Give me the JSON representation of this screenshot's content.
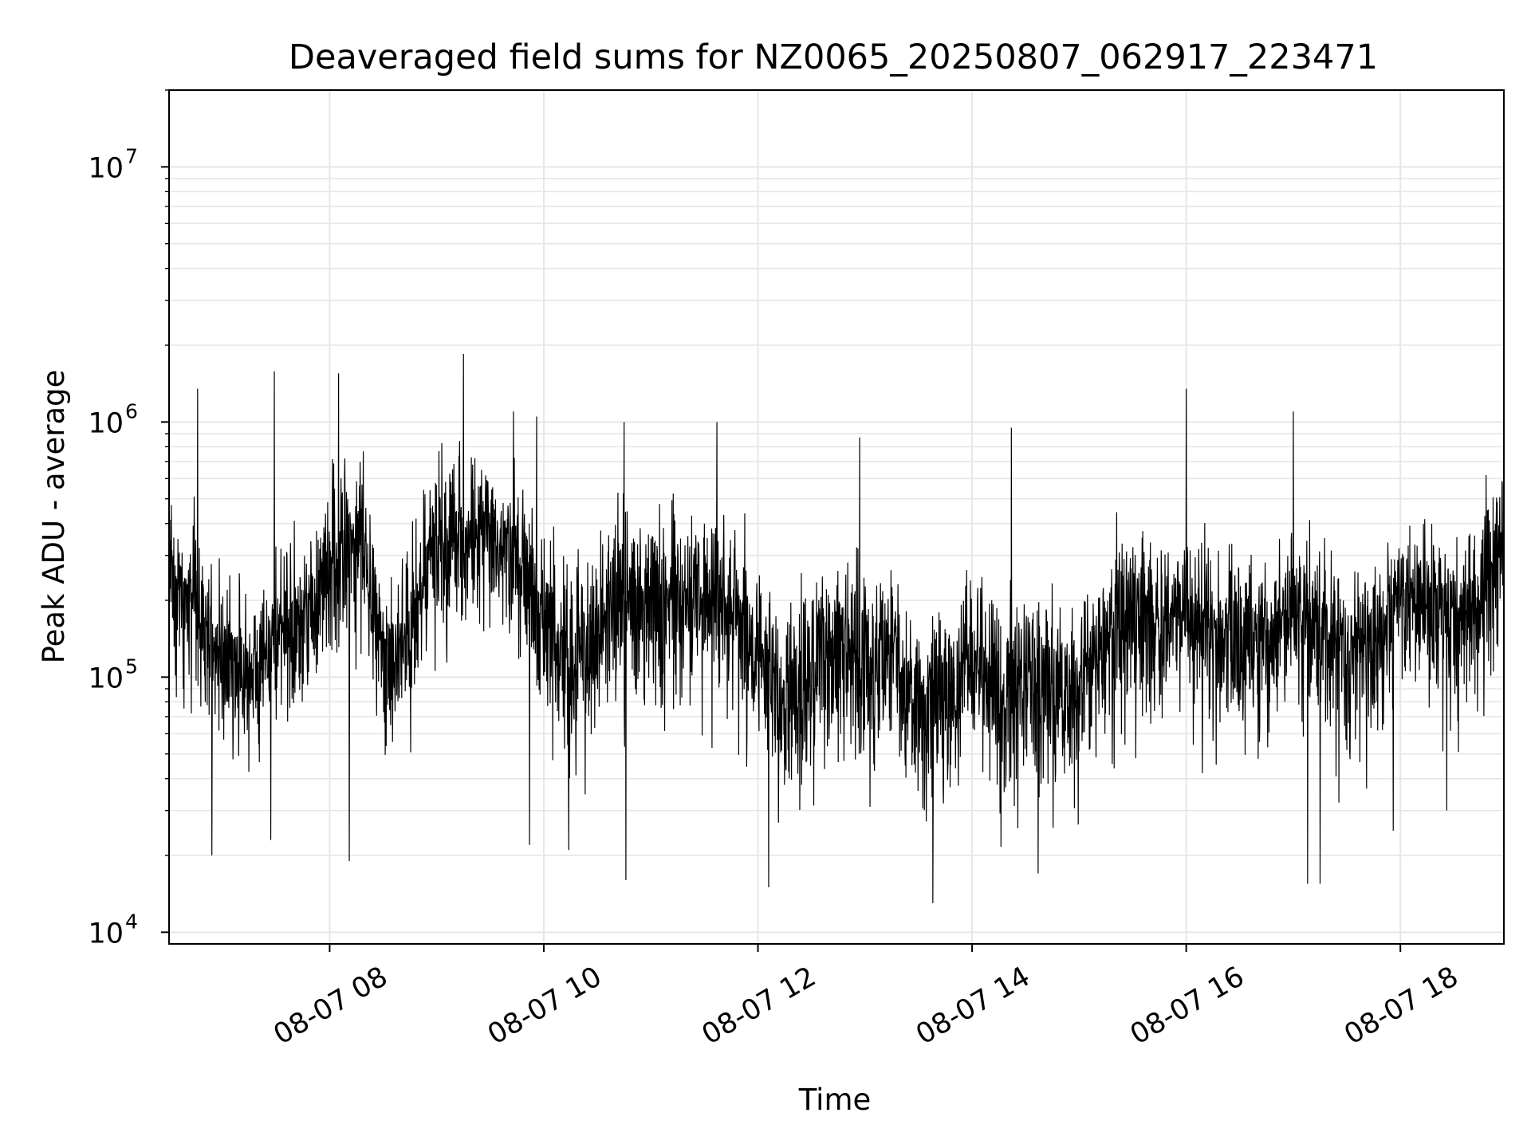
{
  "chart_data": {
    "type": "line",
    "title": "Deaveraged field sums for NZ0065_20250807_062917_223471",
    "xlabel": "Time",
    "ylabel": "Peak ADU - average",
    "yscale": "log",
    "ylim": [
      9000,
      20000000
    ],
    "xlim": [
      "2025-08-07 06:30",
      "2025-08-07 18:58"
    ],
    "grid": true,
    "colors": {
      "line": "#000000",
      "grid": "#e6e6e6",
      "axes": "#000000"
    },
    "x_ticks": [
      {
        "x": "2025-08-07 08:00",
        "label": "08-07 08"
      },
      {
        "x": "2025-08-07 10:00",
        "label": "08-07 10"
      },
      {
        "x": "2025-08-07 12:00",
        "label": "08-07 12"
      },
      {
        "x": "2025-08-07 14:00",
        "label": "08-07 14"
      },
      {
        "x": "2025-08-07 16:00",
        "label": "08-07 16"
      },
      {
        "x": "2025-08-07 18:00",
        "label": "08-07 18"
      }
    ],
    "y_ticks": [
      {
        "value": 10000,
        "base": "10",
        "exp": "4"
      },
      {
        "value": 100000,
        "base": "10",
        "exp": "5"
      },
      {
        "value": 1000000,
        "base": "10",
        "exp": "6"
      },
      {
        "value": 10000000,
        "base": "10",
        "exp": "7"
      }
    ],
    "series": [
      {
        "x": [
          "2025-08-07 06:30",
          "2025-08-07 06:45",
          "2025-08-07 07:00",
          "2025-08-07 07:15",
          "2025-08-07 07:30",
          "2025-08-07 07:45",
          "2025-08-07 08:00",
          "2025-08-07 08:15",
          "2025-08-07 08:30",
          "2025-08-07 08:45",
          "2025-08-07 09:00",
          "2025-08-07 09:15",
          "2025-08-07 09:30",
          "2025-08-07 09:45",
          "2025-08-07 10:00",
          "2025-08-07 10:15",
          "2025-08-07 10:30",
          "2025-08-07 10:45",
          "2025-08-07 11:00",
          "2025-08-07 11:15",
          "2025-08-07 11:30",
          "2025-08-07 11:45",
          "2025-08-07 12:00",
          "2025-08-07 12:15",
          "2025-08-07 12:30",
          "2025-08-07 12:45",
          "2025-08-07 13:00",
          "2025-08-07 13:15",
          "2025-08-07 13:30",
          "2025-08-07 13:45",
          "2025-08-07 14:00",
          "2025-08-07 14:15",
          "2025-08-07 14:30",
          "2025-08-07 14:45",
          "2025-08-07 15:00",
          "2025-08-07 15:15",
          "2025-08-07 15:30",
          "2025-08-07 15:45",
          "2025-08-07 16:00",
          "2025-08-07 16:15",
          "2025-08-07 16:30",
          "2025-08-07 16:45",
          "2025-08-07 17:00",
          "2025-08-07 17:15",
          "2025-08-07 17:30",
          "2025-08-07 17:45",
          "2025-08-07 18:00",
          "2025-08-07 18:15",
          "2025-08-07 18:30",
          "2025-08-07 18:45",
          "2025-08-07 18:58"
        ],
        "median": [
          250000,
          180000,
          120000,
          100000,
          150000,
          160000,
          250000,
          400000,
          120000,
          150000,
          330000,
          350000,
          330000,
          280000,
          160000,
          110000,
          160000,
          220000,
          200000,
          200000,
          210000,
          200000,
          110000,
          80000,
          110000,
          130000,
          110000,
          120000,
          85000,
          85000,
          110000,
          100000,
          100000,
          85000,
          90000,
          140000,
          200000,
          170000,
          170000,
          150000,
          160000,
          140000,
          180000,
          160000,
          120000,
          150000,
          200000,
          190000,
          170000,
          200000,
          350000
        ],
        "spread_low": [
          0.35,
          0.35,
          0.4,
          0.4,
          0.35,
          0.35,
          0.35,
          0.3,
          0.35,
          0.35,
          0.35,
          0.35,
          0.35,
          0.35,
          0.3,
          0.3,
          0.3,
          0.3,
          0.3,
          0.3,
          0.3,
          0.3,
          0.3,
          0.3,
          0.3,
          0.3,
          0.3,
          0.3,
          0.3,
          0.3,
          0.3,
          0.3,
          0.3,
          0.3,
          0.3,
          0.3,
          0.3,
          0.3,
          0.3,
          0.3,
          0.3,
          0.3,
          0.3,
          0.3,
          0.3,
          0.3,
          0.3,
          0.3,
          0.3,
          0.3,
          0.35
        ],
        "spread_high": [
          2.2,
          2.2,
          2.2,
          2.3,
          2.4,
          2.4,
          2.5,
          2.3,
          2.3,
          2.4,
          2.5,
          2.5,
          2.4,
          2.4,
          2.6,
          2.6,
          2.6,
          2.6,
          2.6,
          2.6,
          2.6,
          2.6,
          2.6,
          2.6,
          2.6,
          2.6,
          2.6,
          2.6,
          2.6,
          2.6,
          2.6,
          2.6,
          2.6,
          2.6,
          2.6,
          2.6,
          2.4,
          2.4,
          2.4,
          2.4,
          2.4,
          2.4,
          2.4,
          2.4,
          2.4,
          2.4,
          2.4,
          2.4,
          2.4,
          2.4,
          1.8
        ],
        "spikes": [
          {
            "x": "2025-08-07 06:46",
            "y": 1350000
          },
          {
            "x": "2025-08-07 06:54",
            "y": 20000
          },
          {
            "x": "2025-08-07 07:27",
            "y": 23000
          },
          {
            "x": "2025-08-07 07:29",
            "y": 1580000
          },
          {
            "x": "2025-08-07 08:05",
            "y": 1550000
          },
          {
            "x": "2025-08-07 08:11",
            "y": 19000
          },
          {
            "x": "2025-08-07 09:15",
            "y": 1850000
          },
          {
            "x": "2025-08-07 09:43",
            "y": 1100000
          },
          {
            "x": "2025-08-07 09:52",
            "y": 22000
          },
          {
            "x": "2025-08-07 09:56",
            "y": 1050000
          },
          {
            "x": "2025-08-07 10:14",
            "y": 21000
          },
          {
            "x": "2025-08-07 10:45",
            "y": 1000000
          },
          {
            "x": "2025-08-07 10:46",
            "y": 16000
          },
          {
            "x": "2025-08-07 11:37",
            "y": 1000000
          },
          {
            "x": "2025-08-07 12:06",
            "y": 15000
          },
          {
            "x": "2025-08-07 12:57",
            "y": 870000
          },
          {
            "x": "2025-08-07 13:38",
            "y": 13000
          },
          {
            "x": "2025-08-07 14:22",
            "y": 950000
          },
          {
            "x": "2025-08-07 14:37",
            "y": 17000
          },
          {
            "x": "2025-08-07 16:00",
            "y": 1350000
          },
          {
            "x": "2025-08-07 16:09",
            "y": 42000
          },
          {
            "x": "2025-08-07 17:00",
            "y": 1100000
          },
          {
            "x": "2025-08-07 17:08",
            "y": 15500
          },
          {
            "x": "2025-08-07 17:15",
            "y": 15500
          },
          {
            "x": "2025-08-07 17:56",
            "y": 25000
          },
          {
            "x": "2025-08-07 18:26",
            "y": 30000
          }
        ]
      }
    ]
  }
}
